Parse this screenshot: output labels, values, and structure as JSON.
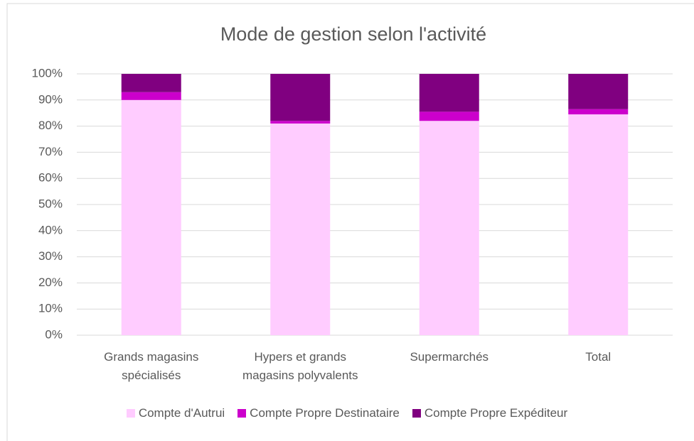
{
  "chart_data": {
    "type": "bar",
    "stacked": true,
    "title": "Mode de gestion selon l'activité",
    "categories": [
      "Grands magasins spécialisés",
      "Hypers et grands magasins polyvalents",
      "Supermarchés",
      "Total"
    ],
    "series": [
      {
        "name": "Compte d'Autrui",
        "color": "#ffccff",
        "values": [
          90,
          81,
          82,
          84.5
        ]
      },
      {
        "name": "Compte Propre Destinataire",
        "color": "#cc00cc",
        "values": [
          3,
          1,
          3.5,
          2
        ]
      },
      {
        "name": "Compte Propre Expéditeur",
        "color": "#800080",
        "values": [
          7,
          18,
          14.5,
          13.5
        ]
      }
    ],
    "ylim": [
      0,
      100
    ],
    "yticks": [
      {
        "value": 0,
        "label": "0%"
      },
      {
        "value": 10,
        "label": "10%"
      },
      {
        "value": 20,
        "label": "20%"
      },
      {
        "value": 30,
        "label": "30%"
      },
      {
        "value": 40,
        "label": "40%"
      },
      {
        "value": 50,
        "label": "50%"
      },
      {
        "value": 60,
        "label": "60%"
      },
      {
        "value": 70,
        "label": "70%"
      },
      {
        "value": 80,
        "label": "80%"
      },
      {
        "value": 90,
        "label": "90%"
      },
      {
        "value": 100,
        "label": "100%"
      }
    ],
    "grid": true
  }
}
